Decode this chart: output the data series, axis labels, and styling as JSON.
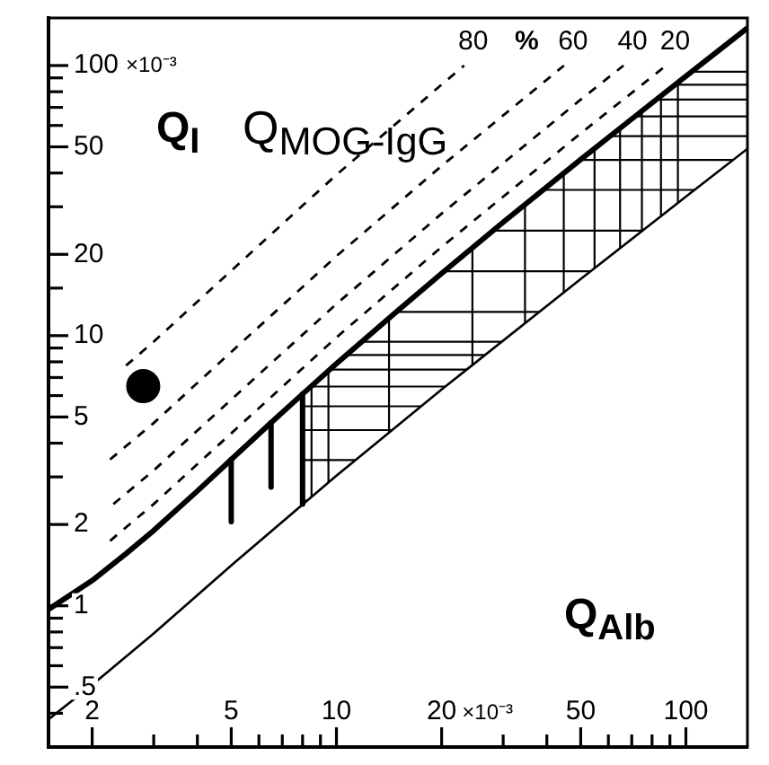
{
  "chart_data": {
    "type": "line",
    "xlabel": "Q$_{Alb}$",
    "ylabel": "Q$_{I}$",
    "annotations": [
      "Q$_{MOG-IgG}$",
      "%",
      "×10⁻³",
      "×10⁻³"
    ],
    "log": "xy",
    "xlim": [
      1.5,
      150
    ],
    "ylim": [
      0.3,
      150
    ],
    "xticks": [
      2,
      {
        "value": 3,
        "label": null
      },
      {
        "value": 4,
        "label": null
      },
      5,
      {
        "value": 6,
        "label": null
      },
      {
        "value": 7,
        "label": null
      },
      {
        "value": 8,
        "label": null
      },
      {
        "value": 9,
        "label": null
      },
      10,
      20,
      {
        "value": 30,
        "label": null
      },
      {
        "value": 40,
        "label": null
      },
      50,
      {
        "value": 60,
        "label": null
      },
      {
        "value": 70,
        "label": null
      },
      {
        "value": 80,
        "label": null
      },
      {
        "value": 90,
        "label": null
      },
      100
    ],
    "yticks": [
      {
        "value": 0.4,
        "label": null
      },
      {
        "value": 0.5,
        "label": ".5"
      },
      {
        "value": 0.6,
        "label": null
      },
      {
        "value": 0.7,
        "label": null
      },
      {
        "value": 0.8,
        "label": null
      },
      {
        "value": 0.9,
        "label": null
      },
      1,
      2,
      {
        "value": 3,
        "label": null
      },
      {
        "value": 4,
        "label": null
      },
      5,
      {
        "value": 6,
        "label": null
      },
      {
        "value": 7,
        "label": null
      },
      {
        "value": 8,
        "label": null
      },
      {
        "value": 9,
        "label": null
      },
      10,
      {
        "value": 15,
        "label": null
      },
      20,
      {
        "value": 30,
        "label": null
      },
      {
        "value": 40,
        "label": null
      },
      50,
      {
        "value": 60,
        "label": null
      },
      {
        "value": 70,
        "label": null
      },
      {
        "value": 80,
        "label": null
      },
      {
        "value": 90,
        "label": null
      },
      100
    ],
    "grid": false,
    "legend": false,
    "marker": "none",
    "line_style": "solid",
    "series": [
      {
        "color": "#000000",
        "x": [
          1.5,
          2,
          2.5,
          3,
          4,
          5,
          6.5,
          8,
          10,
          15,
          20,
          30,
          50,
          70,
          100,
          150
        ],
        "values": [
          0.97,
          1.24,
          1.56,
          1.9,
          2.66,
          3.48,
          4.76,
          6.08,
          7.88,
          12.4,
          17,
          26.3,
          44.9,
          63.4,
          91.3,
          137.8
        ]
      },
      {
        "color": "#000000",
        "x": [
          1.5,
          2,
          3,
          5,
          10,
          20,
          50,
          100,
          150
        ],
        "values": [
          0.38,
          0.51,
          0.79,
          1.41,
          3.03,
          6.32,
          16.2,
          32.7,
          49.2
        ]
      },
      {
        "name": "20",
        "color": "#000000",
        "line_style": "dashed",
        "x": [
          2.25,
          3,
          5,
          10,
          20,
          50,
          87.8
        ],
        "values": [
          1.74,
          2.38,
          4.35,
          9.85,
          21.3,
          56.1,
          100
        ]
      },
      {
        "name": "40",
        "color": "#000000",
        "line_style": "dashed",
        "x": [
          2.3,
          3,
          5,
          10,
          20,
          50,
          66.3
        ],
        "values": [
          2.38,
          3.17,
          5.8,
          13.1,
          28.3,
          74.8,
          100
        ]
      },
      {
        "name": "60",
        "color": "#000000",
        "line_style": "dashed",
        "x": [
          2.25,
          3,
          5,
          10,
          20,
          44.8
        ],
        "values": [
          3.48,
          4.75,
          8.7,
          19.7,
          42.5,
          100
        ]
      },
      {
        "name": "80",
        "color": "#000000",
        "line_style": "dashed",
        "x": [
          2.5,
          3,
          5,
          10,
          20,
          23.2
        ],
        "values": [
          7.75,
          9.5,
          17.4,
          39.4,
          85,
          100
        ]
      },
      {
        "color": "#000000",
        "x": [
          5,
          5
        ],
        "values": [
          3.48,
          2.05
        ]
      },
      {
        "color": "#000000",
        "x": [
          6.5,
          6.5
        ],
        "values": [
          4.76,
          2.75
        ]
      },
      {
        "color": "#000000",
        "x": [
          8,
          8
        ],
        "values": [
          6.08,
          2.38
        ]
      },
      {
        "type": "scatter",
        "color": "#000000",
        "marker": "circle",
        "x": [
          2.8
        ],
        "values": [
          6.5
        ]
      }
    ]
  }
}
